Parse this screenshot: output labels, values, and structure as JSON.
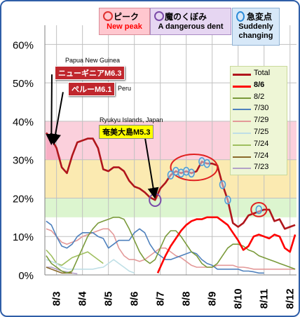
{
  "chart_data": {
    "type": "line",
    "ylim": [
      0,
      65
    ],
    "yticks": [
      0,
      10,
      20,
      30,
      40,
      50,
      60
    ],
    "ytick_labels": [
      "0%",
      "10%",
      "20%",
      "30%",
      "40%",
      "50%",
      "60%"
    ],
    "xlim": [
      2.55,
      12.25
    ],
    "xticks": [
      3,
      4,
      5,
      6,
      7,
      8,
      9,
      10,
      11,
      12
    ],
    "xtick_labels": [
      "8/3",
      "8/4",
      "8/5",
      "8/6",
      "8/7",
      "8/8",
      "8/9",
      "8/10",
      "8/11",
      "8/12"
    ],
    "bands": [
      {
        "from": 0,
        "to": 15,
        "color": "#ffffff"
      },
      {
        "from": 15,
        "to": 20,
        "color": "#dcf5cf"
      },
      {
        "from": 20,
        "to": 30,
        "color": "#fbeab1"
      },
      {
        "from": 30,
        "to": 40,
        "color": "#fbd0dc"
      }
    ],
    "series": [
      {
        "name": "Total",
        "color": "#b0161c",
        "width": 2.6,
        "x": [
          2.6,
          2.8,
          3.0,
          3.2,
          3.4,
          3.6,
          3.8,
          4.0,
          4.2,
          4.4,
          4.6,
          4.8,
          5.0,
          5.2,
          5.4,
          5.6,
          5.8,
          6.0,
          6.2,
          6.4,
          6.6,
          6.8,
          7.0,
          7.2,
          7.4,
          7.6,
          7.8,
          8.0,
          8.2,
          8.4,
          8.6,
          8.8,
          9.0,
          9.2,
          9.4,
          9.6,
          9.8,
          10.0,
          10.2,
          10.4,
          10.6,
          10.8,
          11.0,
          11.2,
          11.4,
          11.6,
          11.8,
          12.0,
          12.2
        ],
        "y": [
          37,
          35.5,
          33,
          28,
          26.5,
          31,
          34.5,
          35,
          35.5,
          35.5,
          33,
          27.5,
          27,
          28,
          28,
          27,
          24.5,
          23,
          22.5,
          21.5,
          20.2,
          19.5,
          22.5,
          24,
          26,
          27,
          26.5,
          27,
          26.5,
          27,
          29.5,
          29,
          29,
          28.5,
          23.5,
          19.5,
          13.5,
          12.5,
          13.5,
          15.5,
          16,
          16.5,
          17,
          17,
          14,
          14.5,
          12,
          12.5,
          13
        ]
      },
      {
        "name": "8/6",
        "color": "#ff0000",
        "width": 2.6,
        "x": [
          6.9,
          7.0,
          7.2,
          7.4,
          7.6,
          7.8,
          8.0,
          8.2,
          8.4,
          8.6,
          8.8,
          9.0,
          9.2,
          9.4,
          9.6,
          9.8,
          10.0,
          10.2,
          10.4,
          10.6,
          10.8,
          11.0,
          11.2,
          11.4,
          11.6,
          11.8,
          12.0,
          12.2
        ],
        "y": [
          0.5,
          2,
          5,
          7.5,
          9.5,
          11.5,
          13,
          14,
          14.5,
          14.5,
          15,
          15,
          15,
          14,
          13,
          11,
          9,
          6.5,
          7.5,
          10,
          10.5,
          10,
          9.5,
          10.5,
          10,
          7,
          6,
          10.5
        ]
      },
      {
        "name": "8/2",
        "color": "#7a9a3a",
        "width": 1.6,
        "x": [
          2.6,
          2.8,
          3.0,
          3.2,
          3.4,
          3.6,
          3.8,
          4.0,
          4.2,
          4.4,
          4.6,
          4.8,
          5.0,
          5.2,
          5.4,
          5.6,
          5.8,
          6.0,
          6.2,
          6.4,
          6.6,
          6.8,
          7.0,
          7.2,
          7.4,
          7.6,
          7.8,
          8.0,
          8.2,
          8.4,
          8.6,
          8.8,
          9.0,
          9.2,
          9.4,
          9.6,
          9.8,
          10.0,
          10.2,
          10.4,
          10.6,
          10.8,
          11.0,
          11.2,
          11.4,
          11.6,
          11.8,
          12.0,
          12.2
        ],
        "y": [
          5,
          3,
          2,
          1,
          0.5,
          1,
          4,
          7,
          10,
          12,
          13.5,
          14,
          14.5,
          15,
          15,
          14.5,
          12,
          9,
          6,
          4,
          3,
          4,
          7,
          10,
          11.5,
          11.5,
          10,
          8,
          6,
          5,
          3,
          2,
          2,
          3,
          5,
          7,
          8,
          8,
          7.5,
          6.5,
          6,
          5,
          4.5,
          4,
          3.5,
          3,
          2.5,
          2,
          1.5
        ]
      },
      {
        "name": "7/30",
        "color": "#4f81bd",
        "width": 1.6,
        "x": [
          2.6,
          2.8,
          3.0,
          3.2,
          3.4,
          3.6,
          3.8,
          4.0,
          4.2,
          4.4,
          4.6,
          4.8,
          5.0,
          5.2,
          5.4,
          5.6,
          5.8,
          6.0,
          6.2,
          6.4,
          6.6,
          6.8,
          7.0,
          7.2,
          7.4,
          7.6,
          7.8,
          8.0,
          8.2,
          8.4,
          8.6,
          8.8,
          9.0,
          9.2,
          9.4,
          9.6,
          9.8,
          10.0,
          10.2,
          10.4,
          10.6,
          10.8,
          11.0
        ],
        "y": [
          14,
          13,
          10,
          7.5,
          7,
          8,
          10,
          11,
          11,
          11,
          10,
          9.5,
          7,
          8,
          9,
          9,
          9,
          11,
          12,
          11,
          8,
          6,
          5,
          4,
          4,
          4.5,
          5,
          5.5,
          6,
          5.5,
          4,
          3,
          2.5,
          1.5,
          1.5,
          1.5,
          1.5,
          1.5,
          1,
          1,
          0.8,
          0.5,
          0.5
        ]
      },
      {
        "name": "7/29",
        "color": "#e39999",
        "width": 1.6,
        "x": [
          2.6,
          2.8,
          3.0,
          3.2,
          3.4,
          3.6,
          3.8,
          4.0,
          4.2,
          4.4,
          4.6,
          4.8,
          5.0,
          5.2,
          5.4,
          5.6,
          5.8,
          6.0,
          6.2,
          6.4,
          6.6,
          6.8,
          7.0,
          7.2,
          7.4,
          7.6,
          7.8,
          8.0,
          8.2,
          8.4,
          8.6,
          8.8,
          9.0,
          9.2,
          9.4,
          9.6,
          9.8,
          10.0,
          10.2,
          10.4,
          10.6,
          10.8,
          11.0,
          11.2,
          11.4,
          11.6,
          11.8,
          12.0,
          12.2
        ],
        "y": [
          12,
          11.5,
          10,
          8.5,
          8,
          8.5,
          9,
          10,
          10.5,
          11,
          11.5,
          12,
          12,
          10.5,
          7,
          5,
          4,
          4,
          3.5,
          4,
          5,
          6,
          7,
          7,
          6,
          5,
          4.5,
          3.5,
          2.5,
          2,
          2,
          2,
          2,
          2.5,
          2.5,
          2.5,
          2.5,
          2,
          2,
          1.8,
          1.5,
          1.5,
          1.5,
          1.5,
          1.5,
          1.5,
          1.5,
          1.5,
          1.5
        ]
      },
      {
        "name": "7/25",
        "color": "#bfdfe6",
        "width": 1.6,
        "x": [
          2.6,
          2.8,
          3.0,
          3.2,
          3.4,
          3.6,
          3.8,
          4.0,
          4.2,
          4.4,
          4.6,
          4.8,
          5.0,
          5.2,
          5.4,
          5.6,
          5.8,
          6.0
        ],
        "y": [
          4,
          3.5,
          3,
          2,
          1.5,
          1.5,
          1.5,
          1.5,
          1.5,
          1.5,
          1.8,
          2,
          3,
          4,
          3,
          2,
          1,
          0.5
        ]
      },
      {
        "name": "7/24",
        "color": "#9fbf5f",
        "width": 1.6,
        "x": [
          2.6,
          2.8,
          3.0,
          3.2,
          3.4,
          3.6,
          3.8,
          4.0,
          4.2,
          4.4,
          4.6,
          4.8
        ],
        "y": [
          6.5,
          5,
          3,
          2.5,
          3.5,
          4.5,
          5,
          5.5,
          6,
          5,
          4,
          3
        ]
      },
      {
        "name": "7/24",
        "color": "#8a6a2a",
        "width": 1.6,
        "x": [
          2.6,
          2.8,
          3.0,
          3.2,
          3.4,
          3.6
        ],
        "y": [
          2,
          1.5,
          1,
          0.5,
          0.5,
          0.5
        ]
      },
      {
        "name": "7/23",
        "color": "#b3a2c7",
        "width": 1.6,
        "x": [
          2.6,
          2.8,
          3.0,
          3.2,
          3.4,
          3.6,
          3.8
        ],
        "y": [
          2,
          2,
          1.5,
          1,
          0.8,
          0.5,
          0.3
        ]
      }
    ],
    "change_markers": {
      "color": "#4f9fd8",
      "points": [
        [
          7.4,
          26
        ],
        [
          7.6,
          27
        ],
        [
          7.8,
          26.5
        ],
        [
          8.0,
          27
        ],
        [
          8.2,
          26.5
        ],
        [
          8.6,
          29.5
        ],
        [
          8.8,
          29
        ],
        [
          9.4,
          23.5
        ],
        [
          9.6,
          19.5
        ],
        [
          10.8,
          17
        ]
      ]
    },
    "peak_circles": [
      {
        "x": 8.3,
        "y": 28,
        "rx": 0.9,
        "ry": 3.4
      },
      {
        "x": 10.8,
        "y": 17,
        "rx": 0.3,
        "ry": 1.8
      }
    ],
    "dent_circles": [
      {
        "x": 6.8,
        "y": 19.5,
        "rx": 0.22,
        "ry": 1.6
      }
    ],
    "peak_shading": {
      "x": [
        2.6,
        2.8,
        3.0,
        3.2
      ],
      "y": [
        37,
        35.5,
        33,
        30
      ],
      "base": 30
    }
  },
  "legend_tags": {
    "peak": {
      "jp": "ピーク",
      "en": "New peak"
    },
    "dent": {
      "jp": "魔のくぼみ",
      "en": "A dangerous dent"
    },
    "change": {
      "jp": "急変点",
      "en": "Suddenly changing"
    }
  },
  "series_legend": [
    {
      "name": "Total",
      "color": "#b0161c",
      "bold": false
    },
    {
      "name": "8/6",
      "color": "#ff0000",
      "bold": true
    },
    {
      "name": "8/2",
      "color": "#7a9a3a",
      "bold": false
    },
    {
      "name": "7/30",
      "color": "#4f81bd",
      "bold": false
    },
    {
      "name": "7/29",
      "color": "#e39999",
      "bold": false
    },
    {
      "name": "7/25",
      "color": "#bfdfe6",
      "bold": false
    },
    {
      "name": "7/24",
      "color": "#9fbf5f",
      "bold": false
    },
    {
      "name": "7/24",
      "color": "#8a6a2a",
      "bold": false
    },
    {
      "name": "7/23",
      "color": "#b3a2c7",
      "bold": false
    }
  ],
  "annotations": {
    "papua_place": "Papua New Guinea",
    "papua_quake": "ニューギニアM6.3",
    "peru_quake": "ペルーM6.1",
    "peru_place": "Peru",
    "ryukyu_place": "Ryukyu Islands, Japan",
    "amami_quake": "奄美大島M5.3"
  },
  "arrows": [
    {
      "from": [
        2.82,
        52.2
      ],
      "to": [
        2.8,
        34.5
      ]
    },
    {
      "from": [
        3.25,
        47.6
      ],
      "to": [
        2.9,
        34.5
      ]
    },
    {
      "from": [
        6.4,
        36.2
      ],
      "to": [
        6.78,
        20.5
      ]
    }
  ]
}
